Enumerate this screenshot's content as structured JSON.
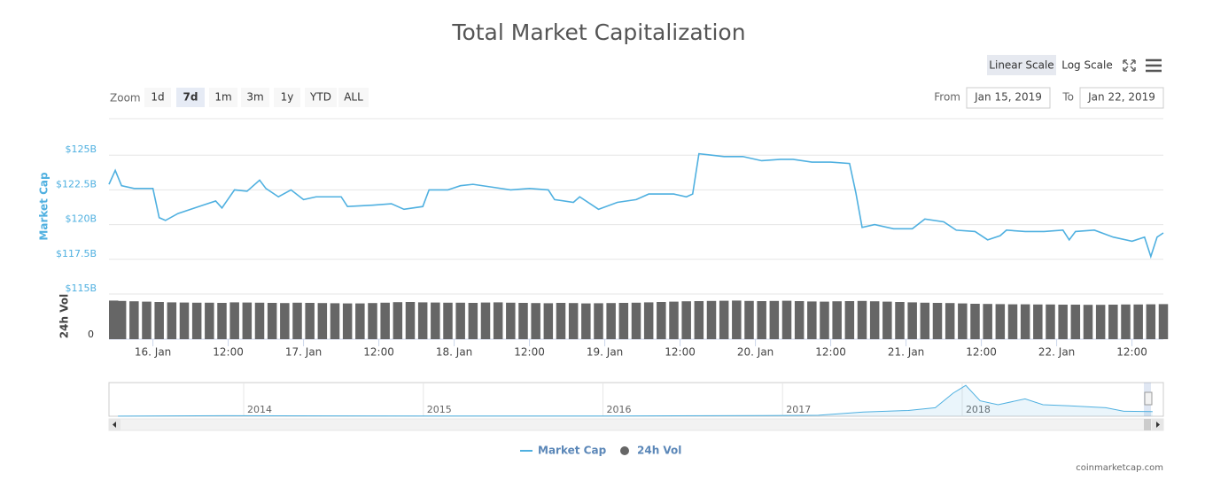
{
  "header": {
    "title": "Total Market Capitalization"
  },
  "toolbar": {
    "scale_buttons": [
      "Linear Scale",
      "Log Scale"
    ],
    "scale_selected_index": 0,
    "zoom_label": "Zoom",
    "zoom_buttons": [
      "1d",
      "7d",
      "1m",
      "3m",
      "1y",
      "YTD",
      "ALL"
    ],
    "zoom_selected_index": 1,
    "from_label": "From",
    "from_value": "Jan 15, 2019",
    "to_label": "To",
    "to_value": "Jan 22, 2019"
  },
  "chart_data": [
    {
      "type": "line",
      "y_label": "Market Cap",
      "grid": true,
      "x": [
        "2019-01-15 17:00",
        "2019-01-15 18:00",
        "2019-01-15 19:00",
        "2019-01-15 21:00",
        "2019-01-16 00:00",
        "2019-01-16 01:00",
        "2019-01-16 02:00",
        "2019-01-16 04:00",
        "2019-01-16 08:00",
        "2019-01-16 10:00",
        "2019-01-16 11:00",
        "2019-01-16 13:00",
        "2019-01-16 15:00",
        "2019-01-16 17:00",
        "2019-01-16 18:00",
        "2019-01-16 20:00",
        "2019-01-16 22:00",
        "2019-01-17 00:00",
        "2019-01-17 02:00",
        "2019-01-17 06:00",
        "2019-01-17 07:00",
        "2019-01-17 11:00",
        "2019-01-17 14:00",
        "2019-01-17 16:00",
        "2019-01-17 19:00",
        "2019-01-17 20:00",
        "2019-01-17 23:00",
        "2019-01-18 01:00",
        "2019-01-18 03:00",
        "2019-01-18 06:00",
        "2019-01-18 09:00",
        "2019-01-18 12:00",
        "2019-01-18 15:00",
        "2019-01-18 16:00",
        "2019-01-18 19:00",
        "2019-01-18 20:00",
        "2019-01-18 23:00",
        "2019-01-19 02:00",
        "2019-01-19 05:00",
        "2019-01-19 07:00",
        "2019-01-19 11:00",
        "2019-01-19 13:00",
        "2019-01-19 14:00",
        "2019-01-19 15:00",
        "2019-01-19 17:00",
        "2019-01-19 19:00",
        "2019-01-19 22:00",
        "2019-01-20 01:00",
        "2019-01-20 04:00",
        "2019-01-20 06:00",
        "2019-01-20 09:00",
        "2019-01-20 12:00",
        "2019-01-20 15:00",
        "2019-01-20 16:00",
        "2019-01-20 17:00",
        "2019-01-20 19:00",
        "2019-01-20 22:00",
        "2019-01-21 01:00",
        "2019-01-21 03:00",
        "2019-01-21 06:00",
        "2019-01-21 08:00",
        "2019-01-21 11:00",
        "2019-01-21 13:00",
        "2019-01-21 15:00",
        "2019-01-21 16:00",
        "2019-01-21 19:00",
        "2019-01-21 22:00",
        "2019-01-22 01:00",
        "2019-01-22 02:00",
        "2019-01-22 03:00",
        "2019-01-22 06:00",
        "2019-01-22 09:00",
        "2019-01-22 12:00",
        "2019-01-22 14:00",
        "2019-01-22 15:00",
        "2019-01-22 16:00",
        "2019-01-22 17:00"
      ],
      "series": [
        {
          "name": "Market Cap",
          "color": "#4fb0e0",
          "values": [
            122.9,
            123.9,
            122.8,
            122.6,
            122.6,
            120.5,
            120.3,
            120.8,
            121.4,
            121.7,
            121.2,
            122.5,
            122.4,
            123.2,
            122.6,
            122.0,
            122.5,
            121.8,
            122.0,
            122.0,
            121.3,
            121.4,
            121.5,
            121.1,
            121.3,
            122.5,
            122.5,
            122.8,
            122.9,
            122.7,
            122.5,
            122.6,
            122.5,
            121.8,
            121.6,
            122.0,
            121.1,
            121.6,
            121.8,
            122.2,
            122.2,
            122.0,
            122.2,
            125.1,
            125.0,
            124.9,
            124.9,
            124.6,
            124.7,
            124.7,
            124.5,
            124.5,
            124.4,
            122.3,
            119.8,
            120.0,
            119.7,
            119.7,
            120.4,
            120.2,
            119.6,
            119.5,
            118.9,
            119.2,
            119.6,
            119.5,
            119.5,
            119.6,
            118.9,
            119.5,
            119.6,
            119.1,
            118.8,
            119.1,
            117.7,
            119.1,
            119.4
          ]
        }
      ],
      "xlim": [
        "2019-01-15 17:00",
        "2019-01-22 17:00"
      ],
      "ylim": [
        115,
        127.5
      ],
      "yticks": [
        {
          "value": 115,
          "label": "$115B"
        },
        {
          "value": 117.5,
          "label": "$117.5B"
        },
        {
          "value": 120,
          "label": "$120B"
        },
        {
          "value": 122.5,
          "label": "$122.5B"
        },
        {
          "value": 125,
          "label": "$125B"
        }
      ],
      "xticks": [
        {
          "value": "2019-01-16 00:00",
          "label": "16. Jan"
        },
        {
          "value": "2019-01-16 12:00",
          "label": "12:00"
        },
        {
          "value": "2019-01-17 00:00",
          "label": "17. Jan"
        },
        {
          "value": "2019-01-17 12:00",
          "label": "12:00"
        },
        {
          "value": "2019-01-18 00:00",
          "label": "18. Jan"
        },
        {
          "value": "2019-01-18 12:00",
          "label": "12:00"
        },
        {
          "value": "2019-01-19 00:00",
          "label": "19. Jan"
        },
        {
          "value": "2019-01-19 12:00",
          "label": "12:00"
        },
        {
          "value": "2019-01-20 00:00",
          "label": "20. Jan"
        },
        {
          "value": "2019-01-20 12:00",
          "label": "12:00"
        },
        {
          "value": "2019-01-21 00:00",
          "label": "21. Jan"
        },
        {
          "value": "2019-01-21 12:00",
          "label": "12:00"
        },
        {
          "value": "2019-01-22 00:00",
          "label": "22. Jan"
        },
        {
          "value": "2019-01-22 12:00",
          "label": "12:00"
        }
      ]
    },
    {
      "type": "bar",
      "y_label": "24h Vol",
      "x": [
        "2019-01-15 17:00",
        "2019-01-15 19:00",
        "2019-01-15 21:00",
        "2019-01-15 23:00",
        "2019-01-16 01:00",
        "2019-01-16 03:00",
        "2019-01-16 05:00",
        "2019-01-16 07:00",
        "2019-01-16 09:00",
        "2019-01-16 11:00",
        "2019-01-16 13:00",
        "2019-01-16 15:00",
        "2019-01-16 17:00",
        "2019-01-16 19:00",
        "2019-01-16 21:00",
        "2019-01-16 23:00",
        "2019-01-17 01:00",
        "2019-01-17 03:00",
        "2019-01-17 05:00",
        "2019-01-17 07:00",
        "2019-01-17 09:00",
        "2019-01-17 11:00",
        "2019-01-17 13:00",
        "2019-01-17 15:00",
        "2019-01-17 17:00",
        "2019-01-17 19:00",
        "2019-01-17 21:00",
        "2019-01-17 23:00",
        "2019-01-18 01:00",
        "2019-01-18 03:00",
        "2019-01-18 05:00",
        "2019-01-18 07:00",
        "2019-01-18 09:00",
        "2019-01-18 11:00",
        "2019-01-18 13:00",
        "2019-01-18 15:00",
        "2019-01-18 17:00",
        "2019-01-18 19:00",
        "2019-01-18 21:00",
        "2019-01-18 23:00",
        "2019-01-19 01:00",
        "2019-01-19 03:00",
        "2019-01-19 05:00",
        "2019-01-19 07:00",
        "2019-01-19 09:00",
        "2019-01-19 11:00",
        "2019-01-19 13:00",
        "2019-01-19 15:00",
        "2019-01-19 17:00",
        "2019-01-19 19:00",
        "2019-01-19 21:00",
        "2019-01-19 23:00",
        "2019-01-20 01:00",
        "2019-01-20 03:00",
        "2019-01-20 05:00",
        "2019-01-20 07:00",
        "2019-01-20 09:00",
        "2019-01-20 11:00",
        "2019-01-20 13:00",
        "2019-01-20 15:00",
        "2019-01-20 17:00",
        "2019-01-20 19:00",
        "2019-01-20 21:00",
        "2019-01-20 23:00",
        "2019-01-21 01:00",
        "2019-01-21 03:00",
        "2019-01-21 05:00",
        "2019-01-21 07:00",
        "2019-01-21 09:00",
        "2019-01-21 11:00",
        "2019-01-21 13:00",
        "2019-01-21 15:00",
        "2019-01-21 17:00",
        "2019-01-21 19:00",
        "2019-01-21 21:00",
        "2019-01-21 23:00",
        "2019-01-22 01:00",
        "2019-01-22 03:00",
        "2019-01-22 05:00",
        "2019-01-22 07:00",
        "2019-01-22 09:00",
        "2019-01-22 11:00",
        "2019-01-22 13:00",
        "2019-01-22 15:00",
        "2019-01-22 17:00"
      ],
      "series": [
        {
          "name": "24h Vol",
          "color": "#666666",
          "values": [
            21.8,
            21.6,
            21.4,
            21.2,
            21.0,
            20.8,
            20.7,
            20.6,
            20.6,
            20.5,
            20.8,
            20.7,
            20.6,
            20.5,
            20.4,
            20.6,
            20.5,
            20.4,
            20.3,
            20.2,
            20.2,
            20.4,
            20.6,
            20.9,
            21.0,
            20.8,
            20.7,
            20.6,
            20.6,
            20.5,
            20.7,
            20.8,
            20.6,
            20.5,
            20.4,
            20.3,
            20.5,
            20.4,
            20.2,
            20.3,
            20.4,
            20.5,
            20.6,
            20.8,
            21.0,
            21.2,
            21.4,
            21.5,
            21.6,
            21.7,
            21.8,
            21.6,
            21.5,
            21.6,
            21.7,
            21.5,
            21.3,
            21.2,
            21.4,
            21.5,
            21.6,
            21.4,
            21.2,
            21.0,
            20.8,
            20.6,
            20.5,
            20.4,
            20.2,
            20.0,
            19.9,
            19.8,
            19.7,
            19.7,
            19.6,
            19.6,
            19.5,
            19.5,
            19.4,
            19.4,
            19.5,
            19.6,
            19.6,
            19.7,
            19.8
          ]
        }
      ],
      "ylim": [
        0,
        23
      ],
      "yticks": [
        0
      ]
    },
    {
      "type": "area",
      "color": "#4fb0e0",
      "x": [
        2013.3,
        2013.9,
        2014.5,
        2015.0,
        2016.0,
        2016.9,
        2017.2,
        2017.45,
        2017.7,
        2017.85,
        2017.95,
        2018.02,
        2018.1,
        2018.2,
        2018.35,
        2018.45,
        2018.6,
        2018.8,
        2018.9,
        2019.06
      ],
      "values": [
        1.5,
        13,
        9,
        5,
        7,
        17,
        25,
        110,
        150,
        220,
        600,
        800,
        400,
        300,
        450,
        300,
        270,
        220,
        130,
        120
      ],
      "xlim": [
        2013.25,
        2019.12
      ],
      "ylim": [
        0,
        850
      ],
      "xticks": [
        2014,
        2015,
        2016,
        2017,
        2018
      ]
    }
  ],
  "footer": {
    "credit": "coinmarketcap.com"
  }
}
